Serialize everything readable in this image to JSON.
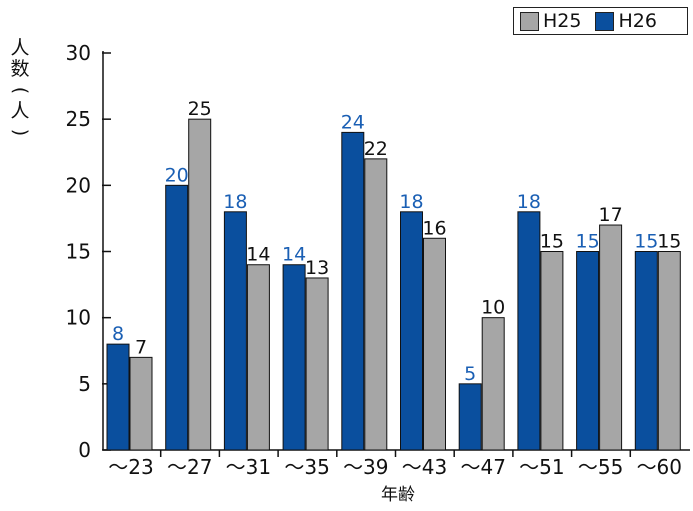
{
  "chart_data": {
    "type": "bar",
    "title": "",
    "xlabel": "年齢",
    "ylabel": "人数(人)",
    "ylim": [
      0,
      30
    ],
    "yticks": [
      "0",
      "5",
      "10",
      "15",
      "20",
      "25",
      "30"
    ],
    "categories": [
      "〜23",
      "〜27",
      "〜31",
      "〜35",
      "〜39",
      "〜43",
      "〜47",
      "〜51",
      "〜55",
      "〜60"
    ],
    "series": [
      {
        "name": "H26",
        "color": "#0a4f9e",
        "label_color": "#1a5fb4",
        "values": [
          8,
          20,
          18,
          14,
          24,
          18,
          5,
          18,
          15,
          15
        ]
      },
      {
        "name": "H25",
        "color": "#a6a6a6",
        "label_color": "#111111",
        "values": [
          7,
          25,
          14,
          13,
          22,
          16,
          10,
          15,
          17,
          15
        ]
      }
    ],
    "legend_position": "top-right",
    "grid": false
  }
}
